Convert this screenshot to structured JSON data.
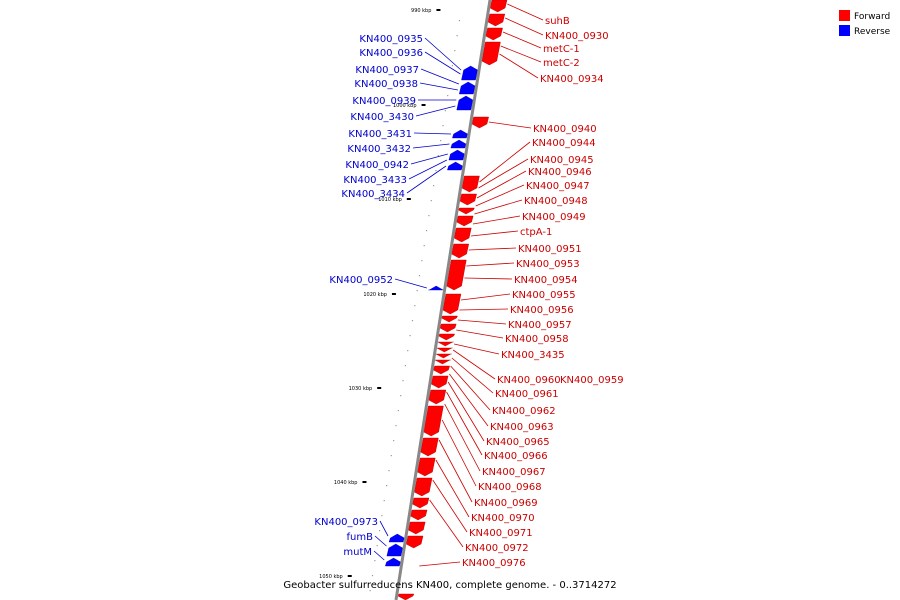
{
  "title": "Geobacter sulfurreducens KN400, complete genome. - 0..3714272",
  "legend": [
    {
      "label": "Forward",
      "color": "#ff0000"
    },
    {
      "label": "Reverse",
      "color": "#0000ff"
    }
  ],
  "colors": {
    "forward": "#ff0000",
    "forward_label": "#cc0000",
    "reverse": "#0000ff",
    "reverse_label": "#0000cc",
    "axis": "#888888"
  },
  "ticks": [
    "990 kbp",
    "1000 kbp",
    "1010 kbp",
    "1020 kbp",
    "1030 kbp",
    "1040 kbp",
    "1050 kbp"
  ],
  "genes_forward": [
    "suhB",
    "KN400_0930",
    "metC-1",
    "metC-2",
    "KN400_0934",
    "KN400_0940",
    "KN400_0944",
    "KN400_0945",
    "KN400_0946",
    "KN400_0947",
    "KN400_0948",
    "KN400_0949",
    "ctpA-1",
    "KN400_0951",
    "KN400_0953",
    "KN400_0954",
    "KN400_0955",
    "KN400_0956",
    "KN400_0957",
    "KN400_0958",
    "KN400_3435",
    "KN400_0960",
    "KN400_0959",
    "KN400_0961",
    "KN400_0962",
    "KN400_0963",
    "KN400_0965",
    "KN400_0966",
    "KN400_0967",
    "KN400_0968",
    "KN400_0969",
    "KN400_0970",
    "KN400_0971",
    "KN400_0972",
    "KN400_0976"
  ],
  "genes_reverse": [
    "KN400_0935",
    "KN400_0936",
    "KN400_0937",
    "KN400_0938",
    "KN400_0939",
    "KN400_3430",
    "KN400_3431",
    "KN400_3432",
    "KN400_0942",
    "KN400_3433",
    "KN400_3434",
    "KN400_0952",
    "KN400_0973",
    "fumB",
    "mutM"
  ]
}
